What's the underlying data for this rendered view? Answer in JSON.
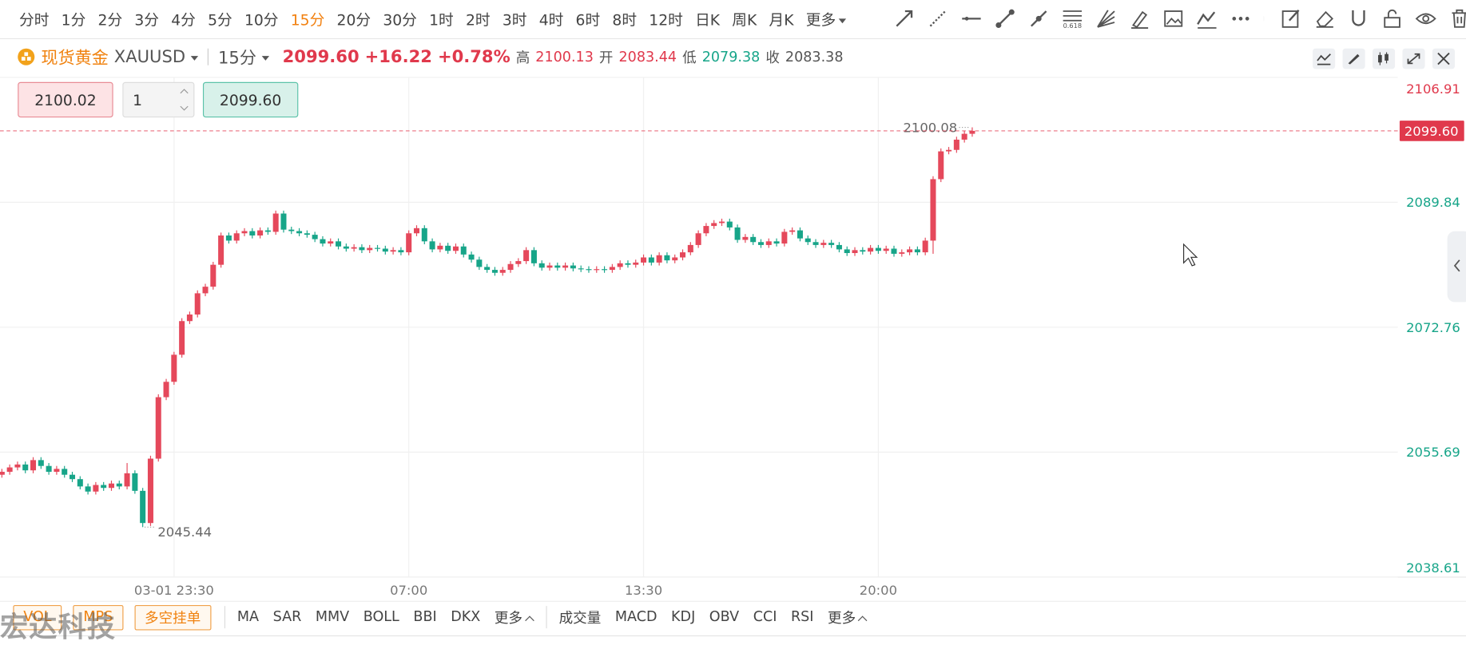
{
  "toolbar": {
    "periods": [
      "分时",
      "1分",
      "2分",
      "3分",
      "4分",
      "5分",
      "10分",
      "15分",
      "20分",
      "30分",
      "1时",
      "2时",
      "3时",
      "4时",
      "6时",
      "8时",
      "12时",
      "日K",
      "周K",
      "月K",
      "更多"
    ],
    "selected": 7,
    "fib_label": "0.618"
  },
  "quote": {
    "symbol_cn": "现货黄金",
    "symbol": "XAUUSD",
    "period": "15分",
    "price": "2099.60",
    "change": "+16.22",
    "change_pct": "+0.78%",
    "high_label": "高",
    "high": "2100.13",
    "open_label": "开",
    "open": "2083.44",
    "low_label": "低",
    "low": "2079.38",
    "close_label": "收",
    "close": "2083.38"
  },
  "order": {
    "buy": "2100.02",
    "qty": "1",
    "sell": "2099.60"
  },
  "bottom": {
    "tags": [
      "VOL",
      "MPS",
      "多空挂单"
    ],
    "main_indicators": [
      "MA",
      "SAR",
      "MMV",
      "BOLL",
      "BBI",
      "DKX",
      "更多"
    ],
    "sub_indicators": [
      "成交量",
      "MACD",
      "KDJ",
      "OBV",
      "CCI",
      "RSI",
      "更多"
    ]
  },
  "watermark": "宏达科技",
  "chart_data": {
    "type": "candlestick",
    "up_color": "#e5485b",
    "down_color": "#17a589",
    "grid": true,
    "xlim": [
      -0.24,
      178.38
    ],
    "xticks": [
      {
        "value": 22,
        "label": "03-01 23:30"
      },
      {
        "value": 52,
        "label": "07:00"
      },
      {
        "value": 82,
        "label": "13:30"
      },
      {
        "value": 112,
        "label": "20:00"
      }
    ],
    "ylim": [
      2038.61,
      2106.91
    ],
    "yticks": [
      {
        "value": 2038.61,
        "label": "2038.61"
      },
      {
        "value": 2055.69,
        "label": "2055.69"
      },
      {
        "value": 2072.76,
        "label": "2072.76"
      },
      {
        "value": 2089.84,
        "label": "2089.84"
      },
      {
        "value": 2106.91,
        "label": "2106.91"
      }
    ],
    "price_line": {
      "value": 2099.6,
      "label": "2099.60"
    },
    "open": [
      2052.6,
      2053.0,
      2053.6,
      2054.0,
      2053.2,
      2054.6,
      2053.8,
      2053.0,
      2053.4,
      2052.6,
      2052.0,
      2051.0,
      2050.3,
      2051.2,
      2050.8,
      2051.4,
      2051.0,
      2052.8,
      2050.4,
      2046.0,
      2054.8,
      2063.2,
      2065.3,
      2069.0,
      2073.6,
      2074.5,
      2077.4,
      2078.3,
      2081.3,
      2085.3,
      2084.6,
      2085.6,
      2085.9,
      2085.3,
      2086.0,
      2085.8,
      2088.3,
      2086.1,
      2085.9,
      2085.6,
      2085.4,
      2084.8,
      2084.2,
      2084.5,
      2083.8,
      2083.5,
      2083.7,
      2083.3,
      2083.6,
      2083.5,
      2083.1,
      2083.3,
      2083.0,
      2085.6,
      2086.3,
      2084.5,
      2083.4,
      2083.9,
      2083.2,
      2083.8,
      2082.7,
      2082.0,
      2081.0,
      2080.6,
      2080.2,
      2080.6,
      2081.4,
      2081.8,
      2083.3,
      2081.5,
      2080.9,
      2081.2,
      2080.9,
      2081.2,
      2080.8,
      2080.7,
      2080.6,
      2080.7,
      2080.6,
      2081.0,
      2081.5,
      2081.3,
      2081.6,
      2082.3,
      2081.6,
      2082.6,
      2081.9,
      2082.3,
      2083.0,
      2084.0,
      2085.6,
      2086.6,
      2087.0,
      2087.2,
      2086.4,
      2084.7,
      2085.1,
      2084.4,
      2084.0,
      2084.5,
      2084.2,
      2085.8,
      2086.0,
      2084.9,
      2084.4,
      2084.0,
      2084.3,
      2084.0,
      2083.4,
      2082.9,
      2083.3,
      2083.1,
      2083.6,
      2083.2,
      2083.5,
      2082.8,
      2083.0,
      2083.4,
      2083.0,
      2084.6,
      2093.0,
      2096.8,
      2097.0,
      2098.4,
      2099.2
    ],
    "high": [
      2053.4,
      2054.0,
      2054.4,
      2054.4,
      2055.0,
      2055.0,
      2054.2,
      2053.8,
      2053.8,
      2053.0,
      2052.4,
      2051.4,
      2051.6,
      2051.6,
      2051.8,
      2051.8,
      2054.2,
      2053.2,
      2050.8,
      2055.2,
      2063.6,
      2065.7,
      2069.4,
      2074.0,
      2074.9,
      2077.8,
      2078.7,
      2081.7,
      2085.7,
      2085.7,
      2086.0,
      2086.3,
      2086.3,
      2086.4,
      2086.4,
      2088.7,
      2088.7,
      2086.5,
      2086.3,
      2086.0,
      2085.8,
      2085.2,
      2084.9,
      2084.9,
      2084.2,
      2084.1,
      2084.1,
      2084.0,
      2084.0,
      2083.9,
      2083.7,
      2083.7,
      2086.0,
      2086.7,
      2086.7,
      2084.9,
      2084.3,
      2084.3,
      2084.2,
      2084.2,
      2083.1,
      2082.4,
      2081.4,
      2081.0,
      2081.0,
      2081.8,
      2082.2,
      2083.7,
      2083.7,
      2081.9,
      2081.6,
      2081.6,
      2081.6,
      2081.6,
      2081.2,
      2081.1,
      2081.1,
      2081.1,
      2081.4,
      2081.9,
      2081.9,
      2082.0,
      2082.7,
      2082.7,
      2083.0,
      2083.0,
      2082.7,
      2083.4,
      2084.4,
      2086.0,
      2087.0,
      2087.4,
      2087.6,
      2087.6,
      2086.8,
      2085.5,
      2085.5,
      2084.8,
      2084.9,
      2084.9,
      2086.2,
      2086.4,
      2086.4,
      2085.3,
      2084.8,
      2084.7,
      2084.7,
      2084.4,
      2083.8,
      2083.7,
      2083.7,
      2084.0,
      2084.0,
      2083.9,
      2083.9,
      2083.4,
      2083.8,
      2083.8,
      2085.0,
      2093.4,
      2097.2,
      2097.4,
      2098.8,
      2099.6,
      2100.08
    ],
    "low": [
      2052.2,
      2052.6,
      2053.2,
      2052.8,
      2052.8,
      2053.4,
      2052.6,
      2052.6,
      2052.2,
      2051.6,
      2050.6,
      2049.9,
      2049.9,
      2050.4,
      2050.4,
      2050.6,
      2050.6,
      2050.0,
      2045.44,
      2045.6,
      2054.4,
      2062.8,
      2064.9,
      2068.6,
      2073.2,
      2074.1,
      2077.0,
      2077.9,
      2080.9,
      2084.2,
      2084.2,
      2085.2,
      2084.9,
      2084.9,
      2085.4,
      2085.4,
      2085.7,
      2085.5,
      2085.2,
      2085.0,
      2084.4,
      2083.8,
      2083.8,
      2083.4,
      2083.1,
      2083.1,
      2082.9,
      2082.9,
      2083.1,
      2082.7,
      2082.7,
      2082.6,
      2082.6,
      2085.2,
      2084.1,
      2083.0,
      2083.0,
      2082.8,
      2082.8,
      2082.3,
      2081.6,
      2080.6,
      2080.2,
      2079.8,
      2079.8,
      2080.2,
      2081.0,
      2081.4,
      2081.1,
      2080.5,
      2080.5,
      2080.5,
      2080.5,
      2080.4,
      2080.3,
      2080.2,
      2080.2,
      2080.2,
      2080.2,
      2080.6,
      2080.9,
      2080.9,
      2081.2,
      2081.2,
      2081.2,
      2081.5,
      2081.5,
      2081.9,
      2082.6,
      2083.6,
      2085.2,
      2086.2,
      2086.6,
      2086.0,
      2084.3,
      2084.3,
      2084.0,
      2083.6,
      2083.6,
      2083.8,
      2083.8,
      2085.4,
      2084.5,
      2084.0,
      2083.6,
      2083.6,
      2083.6,
      2083.0,
      2082.5,
      2082.5,
      2082.7,
      2082.7,
      2082.8,
      2082.8,
      2082.4,
      2082.4,
      2082.6,
      2082.6,
      2082.6,
      2082.8,
      2092.6,
      2096.4,
      2096.6,
      2098.0,
      2098.8
    ],
    "close": [
      2053.0,
      2053.6,
      2054.0,
      2053.2,
      2054.6,
      2053.8,
      2053.0,
      2053.4,
      2052.6,
      2052.0,
      2051.0,
      2050.3,
      2051.2,
      2050.8,
      2051.4,
      2051.0,
      2052.8,
      2050.4,
      2046.0,
      2054.8,
      2063.2,
      2065.3,
      2069.0,
      2073.6,
      2074.5,
      2077.4,
      2078.3,
      2081.3,
      2085.3,
      2084.6,
      2085.6,
      2085.9,
      2085.3,
      2086.0,
      2085.8,
      2088.3,
      2086.1,
      2085.9,
      2085.6,
      2085.4,
      2084.8,
      2084.2,
      2084.5,
      2083.8,
      2083.5,
      2083.7,
      2083.3,
      2083.6,
      2083.5,
      2083.1,
      2083.3,
      2083.0,
      2085.6,
      2086.3,
      2084.5,
      2083.4,
      2083.9,
      2083.2,
      2083.8,
      2082.7,
      2082.0,
      2081.0,
      2080.6,
      2080.2,
      2080.6,
      2081.4,
      2081.8,
      2083.3,
      2081.5,
      2080.9,
      2081.2,
      2080.9,
      2081.2,
      2080.8,
      2080.7,
      2080.6,
      2080.7,
      2080.6,
      2081.0,
      2081.5,
      2081.3,
      2081.6,
      2082.3,
      2081.6,
      2082.6,
      2081.9,
      2082.3,
      2083.0,
      2084.0,
      2085.6,
      2086.6,
      2087.0,
      2087.2,
      2086.4,
      2084.7,
      2085.1,
      2084.4,
      2084.0,
      2084.5,
      2084.2,
      2085.8,
      2086.0,
      2084.9,
      2084.4,
      2084.0,
      2084.3,
      2084.0,
      2083.4,
      2082.9,
      2083.3,
      2083.1,
      2083.6,
      2083.2,
      2083.5,
      2082.8,
      2083.0,
      2083.4,
      2083.0,
      2084.6,
      2093.0,
      2096.8,
      2097.0,
      2098.4,
      2099.2,
      2099.6
    ]
  }
}
